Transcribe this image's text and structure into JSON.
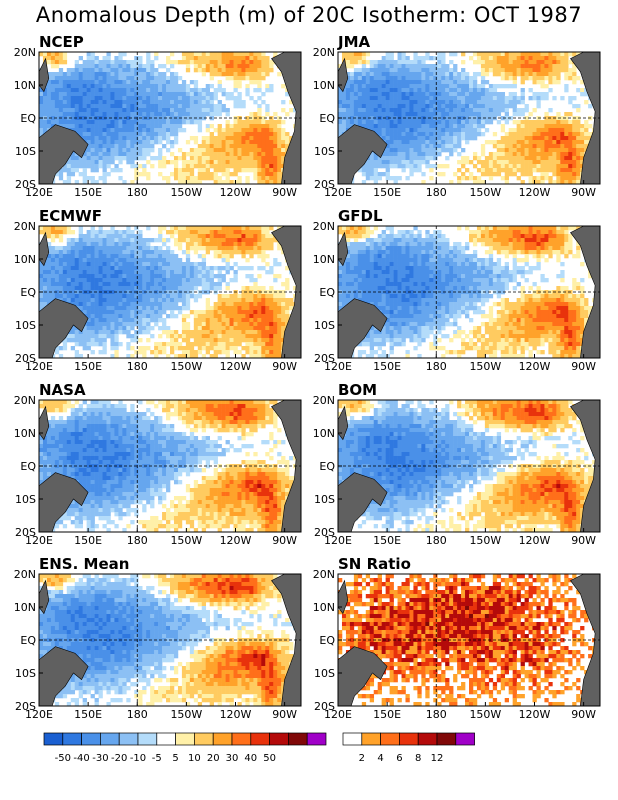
{
  "title": "Anomalous Depth (m) of 20C Isotherm: OCT 1987",
  "chart_data": [
    {
      "type": "heatmap",
      "title": "NCEP",
      "field": "anomaly",
      "xticks": [
        "120E",
        "150E",
        "180",
        "150W",
        "120W",
        "90W"
      ],
      "yticks": [
        "20N",
        "10N",
        "EQ",
        "10S",
        "20S"
      ]
    },
    {
      "type": "heatmap",
      "title": "JMA",
      "field": "anomaly",
      "xticks": [
        "120E",
        "150E",
        "180",
        "150W",
        "120W",
        "90W"
      ],
      "yticks": [
        "20N",
        "10N",
        "EQ",
        "10S",
        "20S"
      ]
    },
    {
      "type": "heatmap",
      "title": "ECMWF",
      "field": "anomaly",
      "xticks": [
        "120E",
        "150E",
        "180",
        "150W",
        "120W",
        "90W"
      ],
      "yticks": [
        "20N",
        "10N",
        "EQ",
        "10S",
        "20S"
      ]
    },
    {
      "type": "heatmap",
      "title": "GFDL",
      "field": "anomaly",
      "xticks": [
        "120E",
        "150E",
        "180",
        "150W",
        "120W",
        "90W"
      ],
      "yticks": [
        "20N",
        "10N",
        "EQ",
        "10S",
        "20S"
      ]
    },
    {
      "type": "heatmap",
      "title": "NASA",
      "field": "anomaly",
      "xticks": [
        "120E",
        "150E",
        "180",
        "150W",
        "120W",
        "90W"
      ],
      "yticks": [
        "20N",
        "10N",
        "EQ",
        "10S",
        "20S"
      ]
    },
    {
      "type": "heatmap",
      "title": "BOM",
      "field": "anomaly",
      "xticks": [
        "120E",
        "150E",
        "180",
        "150W",
        "120W",
        "90W"
      ],
      "yticks": [
        "20N",
        "10N",
        "EQ",
        "10S",
        "20S"
      ]
    },
    {
      "type": "heatmap",
      "title": "ENS. Mean",
      "field": "anomaly",
      "xticks": [
        "120E",
        "150E",
        "180",
        "150W",
        "120W",
        "90W"
      ],
      "yticks": [
        "20N",
        "10N",
        "EQ",
        "10S",
        "20S"
      ]
    },
    {
      "type": "heatmap",
      "title": "SN Ratio",
      "field": "snratio",
      "xticks": [
        "120E",
        "150E",
        "180",
        "150W",
        "120W",
        "90W"
      ],
      "yticks": [
        "20N",
        "10N",
        "EQ",
        "10S",
        "20S"
      ]
    }
  ],
  "colorbars": {
    "anomaly": {
      "labels": [
        "-50",
        "-40",
        "-30",
        "-20",
        "-10",
        "-5",
        "5",
        "10",
        "20",
        "30",
        "40",
        "50"
      ],
      "colors": [
        "#1a5fd1",
        "#2f78e0",
        "#4a90e8",
        "#66a6ee",
        "#8cc0f4",
        "#b4dcfa",
        "#ffffff",
        "#fff0a8",
        "#ffcb60",
        "#ffa22a",
        "#ff6f1a",
        "#e8320c",
        "#b40a0a",
        "#800808",
        "#a000c8"
      ]
    },
    "snratio": {
      "labels": [
        "2",
        "4",
        "6",
        "8",
        "12"
      ],
      "colors": [
        "#ffffff",
        "#ffa22a",
        "#ff6f1a",
        "#e8320c",
        "#b40a0a",
        "#800808",
        "#a000c8"
      ]
    }
  },
  "land_color": "#606060"
}
